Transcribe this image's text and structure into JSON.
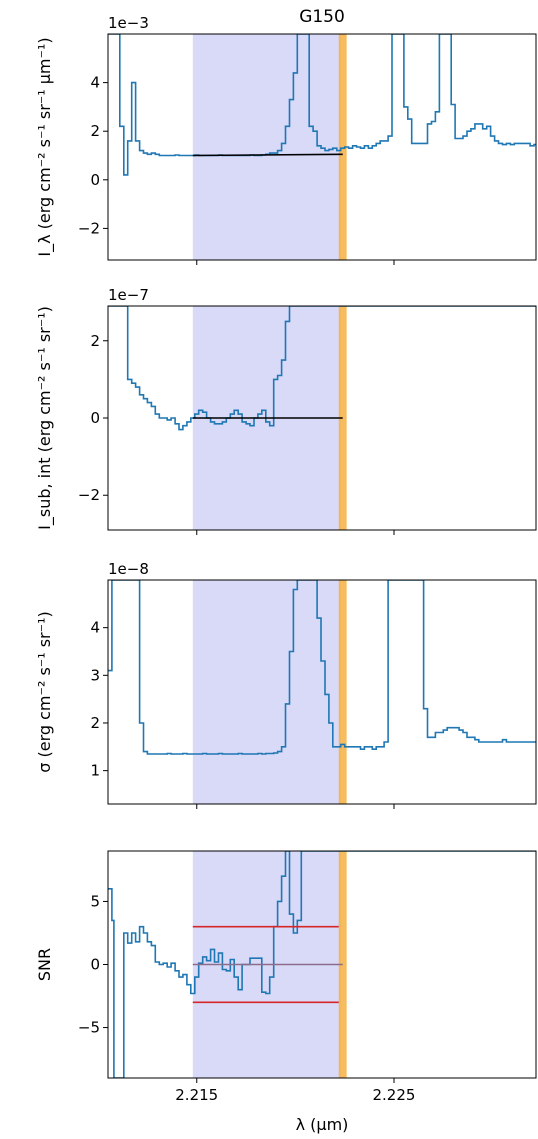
{
  "title": "G150",
  "xlabel": "λ (μm)",
  "xticks": [
    "2.215",
    "2.225"
  ],
  "colors": {
    "series": "#1f77b4",
    "fit": "#000000",
    "band": "#d9d9f8",
    "line_marker": "#f5b041",
    "threshold": "#d62728",
    "zero": "#8c6d8c"
  },
  "chart_data": [
    {
      "type": "line",
      "name": "panel-intensity",
      "exponent": "1e−3",
      "ylabel": "I_λ (erg cm⁻² s⁻¹ sr⁻¹ μm⁻¹)",
      "ylim": [
        -3.3,
        6.0
      ],
      "xlim": [
        2.2105,
        2.2322
      ],
      "yticks": [
        4,
        2,
        0,
        -2
      ],
      "ytick_labels": [
        "4",
        "2",
        "0",
        "−2"
      ],
      "x": [
        2.2105,
        2.2107,
        2.2108,
        2.2111,
        2.2113,
        2.2115,
        2.2117,
        2.2119,
        2.2121,
        2.2123,
        2.2125,
        2.2127,
        2.2129,
        2.2131,
        2.2133,
        2.2135,
        2.2137,
        2.2139,
        2.2141,
        2.2143,
        2.2145,
        2.2147,
        2.2149,
        2.2151,
        2.2153,
        2.2155,
        2.2157,
        2.2159,
        2.2161,
        2.2163,
        2.2165,
        2.2167,
        2.2169,
        2.2171,
        2.2173,
        2.2175,
        2.2177,
        2.2179,
        2.2181,
        2.2183,
        2.2185,
        2.2187,
        2.2189,
        2.2191,
        2.2193,
        2.2195,
        2.2197,
        2.2199,
        2.2201,
        2.2203,
        2.2205,
        2.2207,
        2.2209,
        2.2211,
        2.2213,
        2.2215,
        2.2217,
        2.2219,
        2.2221,
        2.2223,
        2.2225,
        2.2227,
        2.2229,
        2.2231,
        2.2233,
        2.2235,
        2.2237,
        2.2239,
        2.2241,
        2.2243,
        2.2245,
        2.2247,
        2.2249,
        2.2251,
        2.2253,
        2.2255,
        2.2257,
        2.2259,
        2.2261,
        2.2263,
        2.2265,
        2.2267,
        2.2269,
        2.2271,
        2.2273,
        2.2275,
        2.2277,
        2.2279,
        2.2281,
        2.2283,
        2.2285,
        2.2287,
        2.2289,
        2.2291,
        2.2293,
        2.2295,
        2.2297,
        2.2299,
        2.2301,
        2.2303,
        2.2305,
        2.2307,
        2.2309,
        2.2311,
        2.2313,
        2.2315,
        2.2317,
        2.2319,
        2.2321
      ],
      "y": [
        6,
        6,
        6,
        2.2,
        0.2,
        1.6,
        4.0,
        1.6,
        1.2,
        1.1,
        1.05,
        1.1,
        1.05,
        1.0,
        1.0,
        1.0,
        1.0,
        1.02,
        1.0,
        1.0,
        1.0,
        1.0,
        1.02,
        1.0,
        1.0,
        1.0,
        1.0,
        1.0,
        1.02,
        1.0,
        1.0,
        1.0,
        1.0,
        1.0,
        1.0,
        1.0,
        1.02,
        1.0,
        1.0,
        1.02,
        1.05,
        1.1,
        1.1,
        1.2,
        1.5,
        2.2,
        3.3,
        4.4,
        6,
        6,
        6,
        2.2,
        2.0,
        1.4,
        1.3,
        1.2,
        1.25,
        1.3,
        1.2,
        1.3,
        1.35,
        1.3,
        1.4,
        1.35,
        1.3,
        1.4,
        1.3,
        1.4,
        1.5,
        1.6,
        1.6,
        1.8,
        6,
        6,
        6,
        3.0,
        2.5,
        1.5,
        1.5,
        1.5,
        1.5,
        2.3,
        2.4,
        2.8,
        6,
        6,
        6,
        3.1,
        1.7,
        1.7,
        1.8,
        2.0,
        2.1,
        2.3,
        2.3,
        2.1,
        2.2,
        1.8,
        1.6,
        1.5,
        1.45,
        1.5,
        1.45,
        1.5,
        1.5,
        1.5,
        1.5,
        1.4,
        1.45
      ],
      "fit": {
        "x": [
          2.2148,
          2.2224
        ],
        "y": [
          1.0,
          1.05
        ]
      }
    },
    {
      "type": "line",
      "name": "panel-subtracted",
      "exponent": "1e−7",
      "ylabel": "I_sub, int (erg cm⁻² s⁻¹ sr⁻¹)",
      "ylim": [
        -2.9,
        2.9
      ],
      "xlim": [
        2.2105,
        2.2322
      ],
      "yticks": [
        2,
        0,
        -2
      ],
      "ytick_labels": [
        "2",
        "0",
        "−2"
      ],
      "x": [
        2.2105,
        2.2107,
        2.2108,
        2.2111,
        2.2113,
        2.2115,
        2.2117,
        2.2119,
        2.2121,
        2.2123,
        2.2125,
        2.2127,
        2.2129,
        2.2131,
        2.2133,
        2.2135,
        2.2137,
        2.2139,
        2.2141,
        2.2143,
        2.2145,
        2.2147,
        2.2149,
        2.2151,
        2.2153,
        2.2155,
        2.2157,
        2.2159,
        2.2161,
        2.2163,
        2.2165,
        2.2167,
        2.2169,
        2.2171,
        2.2173,
        2.2175,
        2.2177,
        2.2179,
        2.2181,
        2.2183,
        2.2185,
        2.2187,
        2.2189,
        2.2191,
        2.2193,
        2.2195,
        2.2197,
        2.2199,
        2.2201,
        2.2203,
        2.2205,
        2.2207,
        2.2209,
        2.2211,
        2.2213,
        2.2215,
        2.2217,
        2.2219,
        2.2221,
        2.2223,
        2.2225,
        2.2227,
        2.2229,
        2.2231,
        2.2233,
        2.2235,
        2.2237,
        2.2239,
        2.2241,
        2.2243,
        2.2245,
        2.2247,
        2.2249,
        2.2251,
        2.2253,
        2.2255,
        2.2257,
        2.2259,
        2.2261,
        2.2263,
        2.2265,
        2.2267,
        2.2269,
        2.2271,
        2.2273,
        2.2275,
        2.2277,
        2.2279,
        2.2281,
        2.2283,
        2.2285,
        2.2287,
        2.2289,
        2.2291,
        2.2293,
        2.2295,
        2.2297,
        2.2299,
        2.2301,
        2.2303,
        2.2305,
        2.2307,
        2.2309,
        2.2311,
        2.2313,
        2.2315,
        2.2317,
        2.2319,
        2.2321
      ],
      "y": [
        2.9,
        2.9,
        2.9,
        2.9,
        2.9,
        1.0,
        0.9,
        0.8,
        0.6,
        0.5,
        0.4,
        0.3,
        0.1,
        0.0,
        0.0,
        -0.05,
        0.0,
        -0.15,
        -0.3,
        -0.2,
        -0.1,
        0.0,
        0.1,
        0.2,
        0.15,
        0.0,
        -0.1,
        -0.15,
        -0.15,
        -0.1,
        0.0,
        0.1,
        0.2,
        0.1,
        -0.1,
        -0.15,
        -0.2,
        0.0,
        0.1,
        0.2,
        -0.1,
        -0.2,
        1.0,
        1.1,
        1.5,
        2.5,
        2.9,
        2.9,
        2.9,
        2.9,
        2.9,
        2.9,
        2.9,
        2.9,
        2.9,
        2.9,
        2.9,
        2.9,
        2.9,
        2.9,
        2.9,
        2.9,
        2.9,
        2.9,
        2.9,
        2.9,
        2.9,
        2.9,
        2.9,
        2.9,
        2.9,
        2.9,
        2.9,
        2.9,
        2.9,
        2.9,
        2.9,
        2.9,
        2.9,
        2.9,
        2.9,
        2.9,
        2.9,
        2.9,
        2.9,
        2.9,
        2.9,
        2.9,
        2.9,
        2.9,
        2.9,
        2.9,
        2.9,
        2.9,
        2.9,
        2.9,
        2.9,
        2.9,
        2.9,
        2.9,
        2.9,
        2.9,
        2.9,
        2.9,
        2.9,
        2.9,
        2.9,
        2.9,
        2.9
      ],
      "fit": {
        "x": [
          2.2148,
          2.2224
        ],
        "y": [
          0.0,
          0.0
        ]
      }
    },
    {
      "type": "line",
      "name": "panel-sigma",
      "exponent": "1e−8",
      "ylabel": "σ (erg cm⁻² s⁻¹ sr⁻¹)",
      "ylim": [
        0.3,
        5.0
      ],
      "xlim": [
        2.2105,
        2.2322
      ],
      "yticks": [
        4,
        3,
        2,
        1
      ],
      "ytick_labels": [
        "4",
        "3",
        "2",
        "1"
      ],
      "x": [
        2.2105,
        2.2107,
        2.2108,
        2.2111,
        2.2113,
        2.2115,
        2.2117,
        2.2119,
        2.2121,
        2.2123,
        2.2125,
        2.2127,
        2.2129,
        2.2131,
        2.2133,
        2.2135,
        2.2137,
        2.2139,
        2.2141,
        2.2143,
        2.2145,
        2.2147,
        2.2149,
        2.2151,
        2.2153,
        2.2155,
        2.2157,
        2.2159,
        2.2161,
        2.2163,
        2.2165,
        2.2167,
        2.2169,
        2.2171,
        2.2173,
        2.2175,
        2.2177,
        2.2179,
        2.2181,
        2.2183,
        2.2185,
        2.2187,
        2.2189,
        2.2191,
        2.2193,
        2.2195,
        2.2197,
        2.2199,
        2.2201,
        2.2203,
        2.2205,
        2.2207,
        2.2209,
        2.2211,
        2.2213,
        2.2215,
        2.2217,
        2.2219,
        2.2221,
        2.2223,
        2.2225,
        2.2227,
        2.2229,
        2.2231,
        2.2233,
        2.2235,
        2.2237,
        2.2239,
        2.2241,
        2.2243,
        2.2245,
        2.2247,
        2.2249,
        2.2251,
        2.2253,
        2.2255,
        2.2257,
        2.2259,
        2.2261,
        2.2263,
        2.2265,
        2.2267,
        2.2269,
        2.2271,
        2.2273,
        2.2275,
        2.2277,
        2.2279,
        2.2281,
        2.2283,
        2.2285,
        2.2287,
        2.2289,
        2.2291,
        2.2293,
        2.2295,
        2.2297,
        2.2299,
        2.2301,
        2.2303,
        2.2305,
        2.2307,
        2.2309,
        2.2311,
        2.2313,
        2.2315,
        2.2317,
        2.2319,
        2.2321
      ],
      "y": [
        3.1,
        5.0,
        5.0,
        5.0,
        5.0,
        5.0,
        5.0,
        5.0,
        2.0,
        1.4,
        1.35,
        1.35,
        1.35,
        1.35,
        1.35,
        1.36,
        1.35,
        1.35,
        1.35,
        1.36,
        1.35,
        1.35,
        1.35,
        1.35,
        1.36,
        1.35,
        1.35,
        1.35,
        1.36,
        1.35,
        1.35,
        1.35,
        1.35,
        1.36,
        1.35,
        1.35,
        1.35,
        1.35,
        1.36,
        1.35,
        1.36,
        1.36,
        1.37,
        1.4,
        1.5,
        2.4,
        3.5,
        4.8,
        5.0,
        5.0,
        5.0,
        5.0,
        5.0,
        4.2,
        3.3,
        2.6,
        2.0,
        1.5,
        1.5,
        1.55,
        1.5,
        1.5,
        1.5,
        1.5,
        1.45,
        1.5,
        1.5,
        1.45,
        1.5,
        1.5,
        1.6,
        5.0,
        5.0,
        5.0,
        5.0,
        5.0,
        5.0,
        5.0,
        5.0,
        5.0,
        2.3,
        1.7,
        1.7,
        1.8,
        1.8,
        1.85,
        1.9,
        1.9,
        1.9,
        1.85,
        1.8,
        1.7,
        1.7,
        1.65,
        1.6,
        1.6,
        1.6,
        1.6,
        1.6,
        1.6,
        1.65,
        1.6,
        1.6,
        1.6,
        1.6,
        1.6,
        1.6,
        1.6,
        1.6
      ],
      "fit": null
    },
    {
      "type": "line",
      "name": "panel-snr",
      "exponent": "",
      "ylabel": "SNR",
      "ylim": [
        -9.0,
        9.0
      ],
      "xlim": [
        2.2105,
        2.2322
      ],
      "yticks": [
        5,
        0,
        -5
      ],
      "ytick_labels": [
        "5",
        "0",
        "−5"
      ],
      "x": [
        2.2105,
        2.2107,
        2.2108,
        2.2111,
        2.2113,
        2.2115,
        2.2117,
        2.2119,
        2.2121,
        2.2123,
        2.2125,
        2.2127,
        2.2129,
        2.2131,
        2.2133,
        2.2135,
        2.2137,
        2.2139,
        2.2141,
        2.2143,
        2.2145,
        2.2147,
        2.2149,
        2.2151,
        2.2153,
        2.2155,
        2.2157,
        2.2159,
        2.2161,
        2.2163,
        2.2165,
        2.2167,
        2.2169,
        2.2171,
        2.2173,
        2.2175,
        2.2177,
        2.2179,
        2.2181,
        2.2183,
        2.2185,
        2.2187,
        2.2189,
        2.2191,
        2.2193,
        2.2195,
        2.2197,
        2.2199,
        2.2201,
        2.2203,
        2.2205,
        2.2207,
        2.2209,
        2.2211,
        2.2213,
        2.2215,
        2.2217,
        2.2219,
        2.2221,
        2.2223,
        2.2225,
        2.2227,
        2.2229,
        2.2231,
        2.2233,
        2.2235,
        2.2237,
        2.2239,
        2.2241,
        2.2243,
        2.2245,
        2.2247,
        2.2249,
        2.2251,
        2.2253,
        2.2255,
        2.2257,
        2.2259,
        2.2261,
        2.2263,
        2.2265,
        2.2267,
        2.2269,
        2.2271,
        2.2273,
        2.2275,
        2.2277,
        2.2279,
        2.2281,
        2.2283,
        2.2285,
        2.2287,
        2.2289,
        2.2291,
        2.2293,
        2.2295,
        2.2297,
        2.2299,
        2.2301,
        2.2303,
        2.2305,
        2.2307,
        2.2309,
        2.2311,
        2.2313,
        2.2315,
        2.2317,
        2.2319,
        2.2321
      ],
      "y": [
        6.0,
        3.5,
        -9,
        -9,
        2.5,
        1.7,
        2.5,
        1.8,
        3.0,
        2.5,
        1.8,
        1.5,
        0.2,
        0.0,
        0.1,
        -0.2,
        0.1,
        -0.5,
        -1.0,
        -0.8,
        -1.6,
        -2.3,
        -1.0,
        0.1,
        0.6,
        0.3,
        1.2,
        0.2,
        0.9,
        -0.4,
        -0.5,
        0.4,
        -1.0,
        -2.0,
        0.0,
        0.0,
        0.5,
        0.5,
        0.5,
        -2.2,
        -2.3,
        -1.0,
        3.0,
        5.0,
        7.0,
        9.0,
        4.0,
        2.5,
        3.5,
        9.0,
        9.0,
        9.0,
        9.0,
        9.0,
        9.0,
        9.0,
        9.0,
        9.0,
        9.0,
        9.0,
        9.0,
        9.0,
        9.0,
        9.0,
        9.0,
        9.0,
        9.0,
        9.0,
        9.0,
        9.0,
        9.0,
        9.0,
        9.0,
        9.0,
        9.0,
        9.0,
        9.0,
        9.0,
        9.0,
        9.0,
        9.0,
        9.0,
        9.0,
        9.0,
        9.0,
        9.0,
        9.0,
        9.0,
        9.0,
        9.0,
        9.0,
        9.0,
        9.0,
        9.0,
        9.0,
        9.0,
        9.0,
        9.0,
        9.0,
        9.0,
        9.0,
        9.0,
        9.0,
        9.0,
        9.0,
        9.0,
        9.0,
        9.0,
        9.0
      ],
      "fit": {
        "x": [
          2.2148,
          2.2224
        ],
        "y": [
          0.0,
          0.0
        ]
      },
      "thresholds": [
        3,
        -3
      ]
    }
  ],
  "band": {
    "x": [
      2.2148,
      2.2223
    ]
  },
  "line_marker": {
    "x": [
      2.2222,
      2.2226
    ]
  }
}
